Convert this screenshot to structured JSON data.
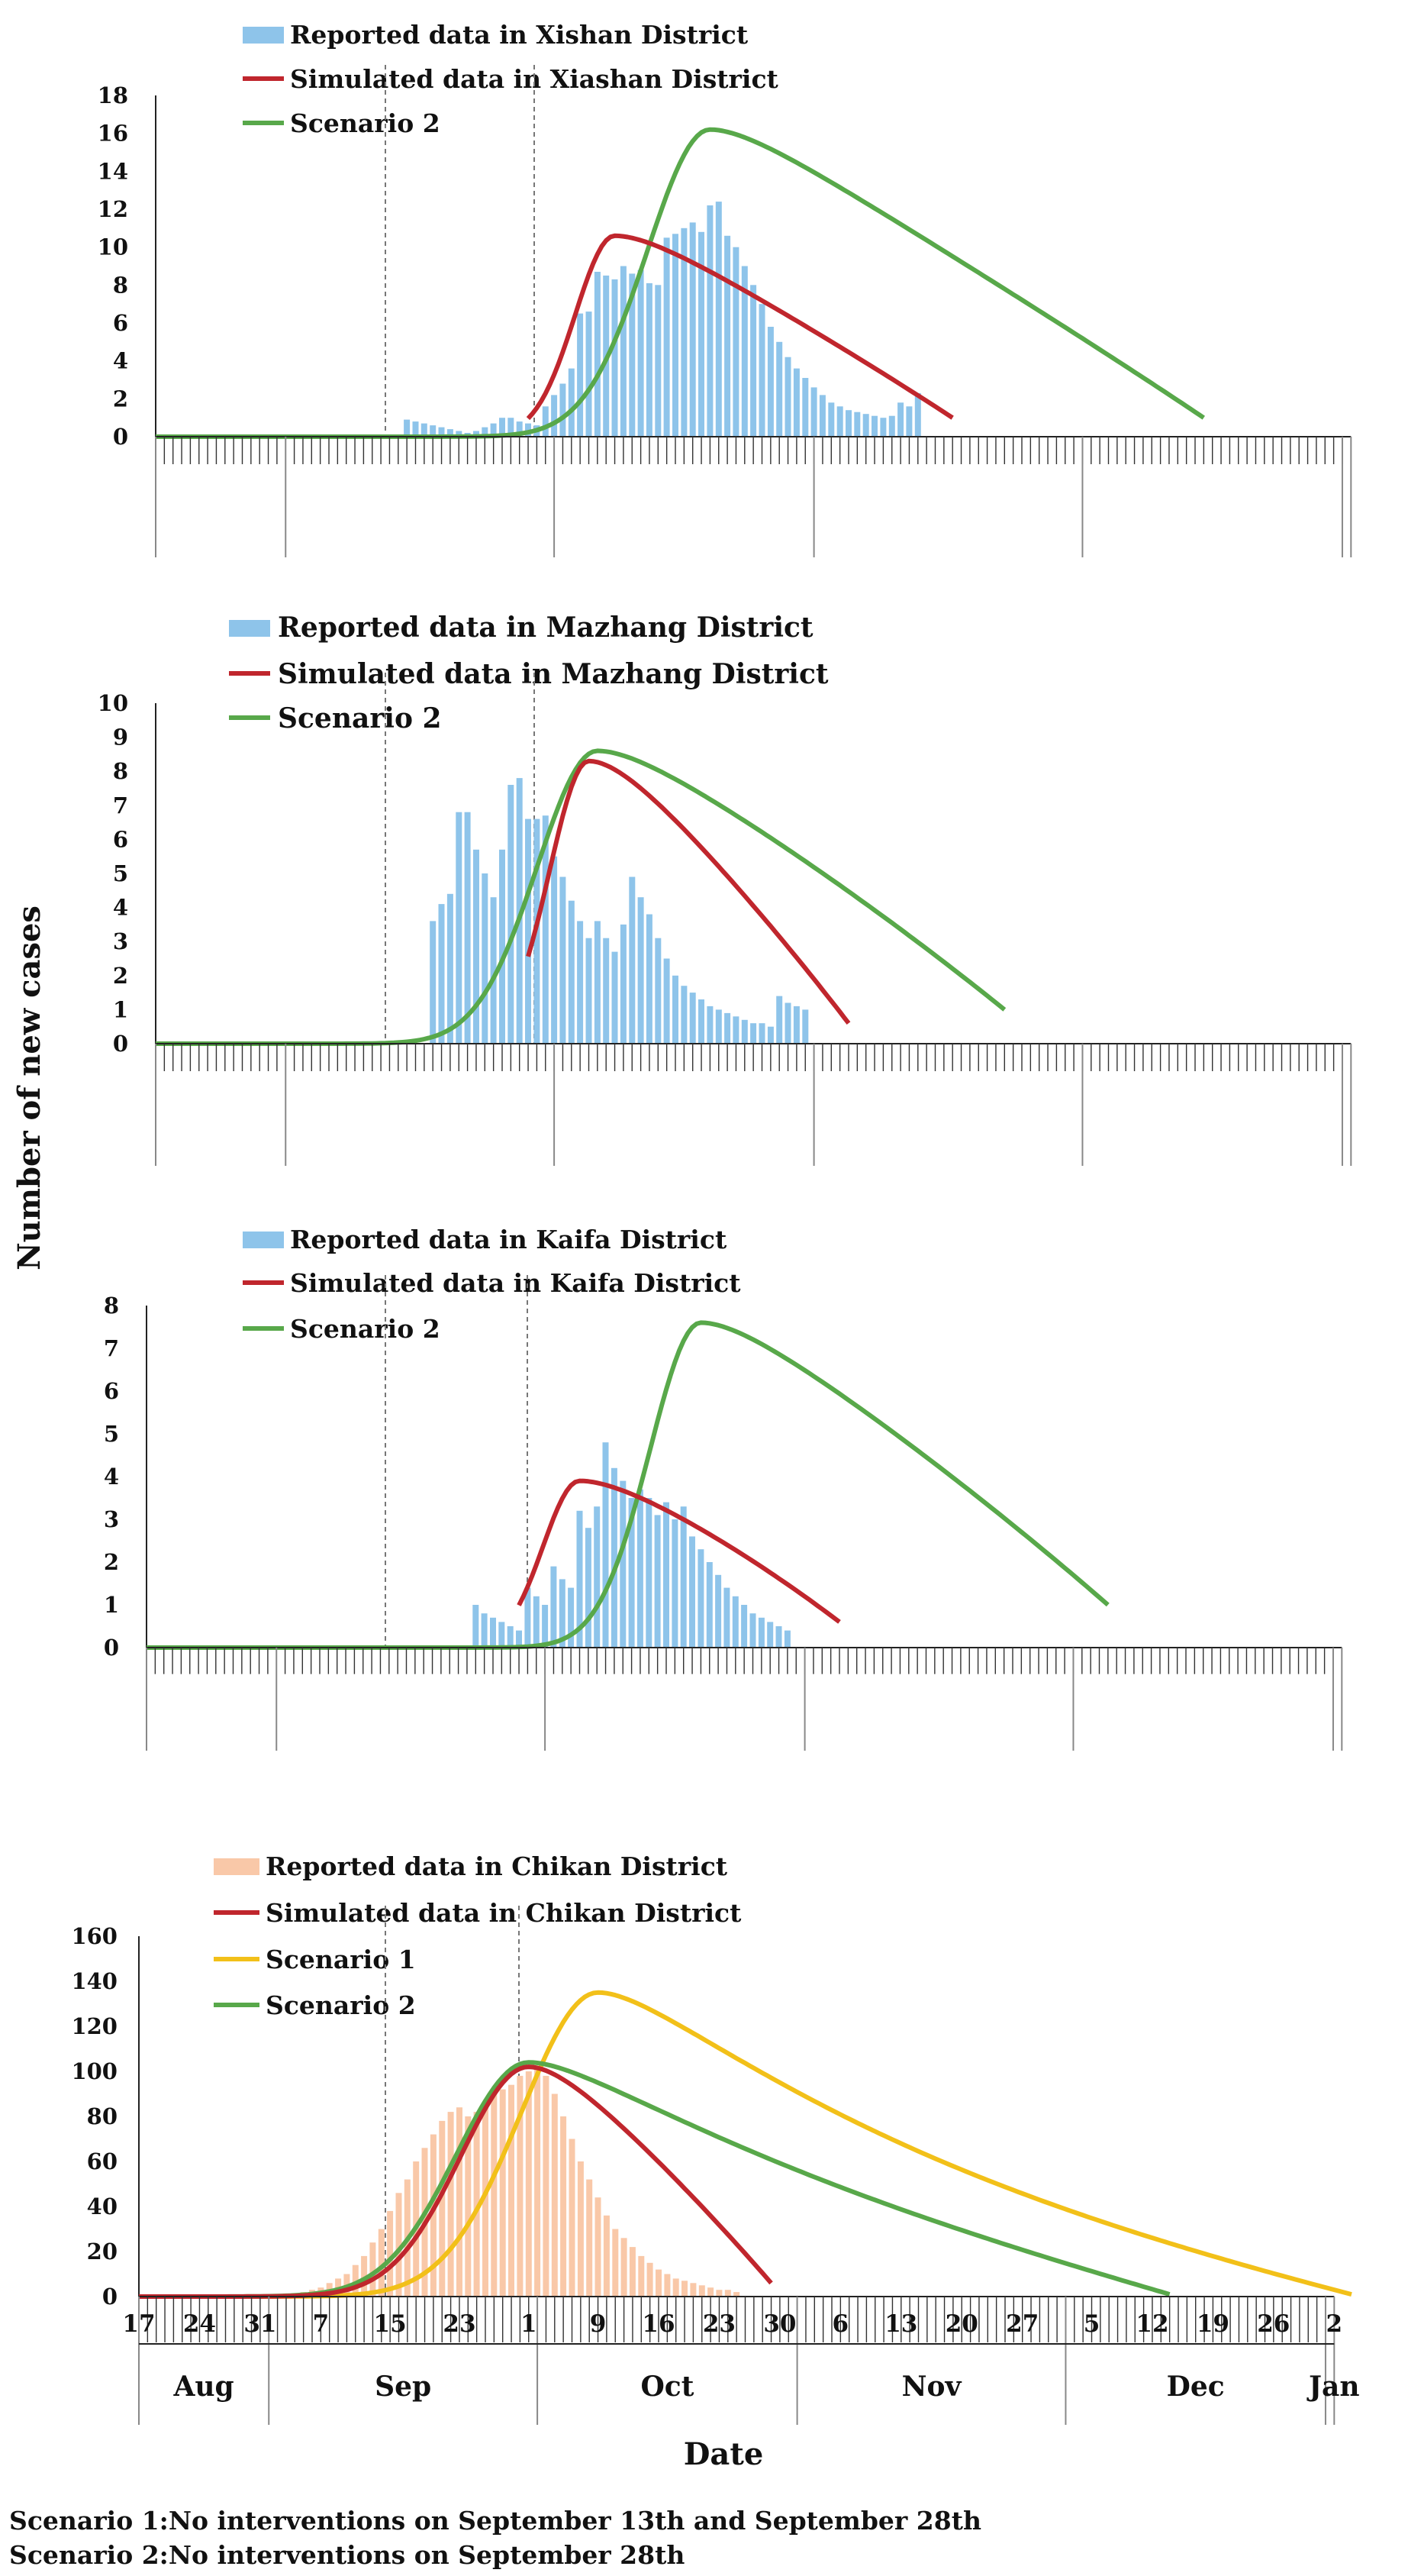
{
  "y_axis_title": "Number of new cases",
  "x_axis_title": "Date",
  "x_tick_labels": [
    "17",
    "24",
    "31",
    "7",
    "15",
    "23",
    "1",
    "9",
    "16",
    "23",
    "30",
    "6",
    "13",
    "20",
    "27",
    "5",
    "12",
    "19",
    "26",
    "2"
  ],
  "month_labels": [
    "Aug",
    "Sep",
    "Oct",
    "Nov",
    "Dec",
    "Jan"
  ],
  "notes": [
    "Scenario 1:No interventions on September 13th and September 28th",
    "Scenario 2:No interventions on September 28th"
  ],
  "colors": {
    "reported_blue": "#8ec4ea",
    "reported_orange": "#f9c8a8",
    "simulated": "#c0262d",
    "scenario1": "#f2c019",
    "scenario2": "#58a84a"
  },
  "chart_data": [
    {
      "type": "bar+line",
      "panel": "Xishan",
      "ylim": [
        0,
        18
      ],
      "yticks": [
        "0",
        "2",
        "4",
        "6",
        "8",
        "10",
        "12",
        "14",
        "16",
        "18"
      ],
      "legend": [
        "Reported data in Xishan District",
        "Simulated data in Xiashan District",
        "Scenario 2"
      ],
      "reported": {
        "start_day": 29,
        "values": [
          0.9,
          0.8,
          0.7,
          0.6,
          0.5,
          0.4,
          0.3,
          0.2,
          0.3,
          0.5,
          0.7,
          1.0,
          1.0,
          0.8,
          0.7,
          0.6,
          1.6,
          2.2,
          2.8,
          3.6,
          6.5,
          6.6,
          8.7,
          8.5,
          8.3,
          9.0,
          8.6,
          8.8,
          8.1,
          8.0,
          10.5,
          10.7,
          11.0,
          11.3,
          10.8,
          12.2,
          12.4,
          10.6,
          10.0,
          9.0,
          8.0,
          7.0,
          5.8,
          5.0,
          4.2,
          3.6,
          3.1,
          2.6,
          2.2,
          1.8,
          1.6,
          1.4,
          1.3,
          1.2,
          1.1,
          1.0,
          1.1,
          1.8,
          1.6,
          2.3
        ]
      },
      "simulated": {
        "start_day": 43,
        "peak_day": 53,
        "peak": 10.6,
        "end_day": 92,
        "end_value": 1.0,
        "rise_k": 0.3,
        "fall_k": 0.07
      },
      "scenario2": {
        "start_day": 0,
        "peak_day": 64,
        "peak": 16.2,
        "end_day": 121,
        "end_value": 1.0,
        "rise_k": 0.12,
        "fall_k": 0.05
      }
    },
    {
      "type": "bar+line",
      "panel": "Mazhang",
      "ylim": [
        0,
        10
      ],
      "yticks": [
        "0",
        "1",
        "2",
        "3",
        "4",
        "5",
        "6",
        "7",
        "8",
        "9",
        "10"
      ],
      "legend": [
        "Reported data in Mazhang District",
        "Simulated data in Mazhang District",
        "Scenario 2"
      ],
      "reported": {
        "start_day": 32,
        "values": [
          3.6,
          4.1,
          4.4,
          6.8,
          6.8,
          5.7,
          5.0,
          4.3,
          5.7,
          7.6,
          7.8,
          6.6,
          6.6,
          6.7,
          5.5,
          4.9,
          4.2,
          3.6,
          3.1,
          3.6,
          3.1,
          2.7,
          3.5,
          4.9,
          4.3,
          3.8,
          3.1,
          2.5,
          2.0,
          1.7,
          1.5,
          1.3,
          1.1,
          1.0,
          0.9,
          0.8,
          0.7,
          0.6,
          0.6,
          0.5,
          1.4,
          1.2,
          1.1,
          1.0
        ]
      },
      "simulated": {
        "start_day": 43,
        "peak_day": 50,
        "peak": 8.3,
        "end_day": 80,
        "end_value": 0.6,
        "rise_k": 0.3,
        "fall_k": 0.09
      },
      "scenario2": {
        "start_day": 0,
        "peak_day": 51,
        "peak": 8.6,
        "end_day": 98,
        "end_value": 1.0,
        "rise_k": 0.13,
        "fall_k": 0.05
      }
    },
    {
      "type": "bar+line",
      "panel": "Kaifa",
      "ylim": [
        0,
        8
      ],
      "yticks": [
        "0",
        "1",
        "2",
        "3",
        "4",
        "5",
        "6",
        "7",
        "8"
      ],
      "legend": [
        "Reported data in Kaifa District",
        "Simulated data in Kaifa District",
        "Scenario 2"
      ],
      "reported": {
        "start_day": 38,
        "values": [
          1.0,
          0.8,
          0.7,
          0.6,
          0.5,
          0.4,
          1.4,
          1.2,
          1.0,
          1.9,
          1.6,
          1.4,
          3.2,
          2.8,
          3.3,
          4.8,
          4.2,
          3.9,
          3.5,
          3.7,
          3.5,
          3.1,
          3.4,
          3.0,
          3.3,
          2.6,
          2.3,
          2.0,
          1.7,
          1.4,
          1.2,
          1.0,
          0.8,
          0.7,
          0.6,
          0.5,
          0.4
        ]
      },
      "simulated": {
        "start_day": 43,
        "peak_day": 50,
        "peak": 3.9,
        "end_day": 80,
        "end_value": 0.6,
        "rise_k": 0.35,
        "fall_k": 0.07
      },
      "scenario2": {
        "start_day": 0,
        "peak_day": 64,
        "peak": 7.6,
        "end_day": 111,
        "end_value": 1.0,
        "rise_k": 0.18,
        "fall_k": 0.05
      }
    },
    {
      "type": "bar+line",
      "panel": "Chikan",
      "ylim": [
        0,
        160
      ],
      "yticks": [
        "0",
        "20",
        "40",
        "60",
        "80",
        "100",
        "120",
        "140",
        "160"
      ],
      "legend": [
        "Reported data in Chikan District",
        "Simulated data in Chikan District",
        "Scenario 1",
        "Scenario 2"
      ],
      "reported": {
        "start_day": 18,
        "values": [
          1,
          2,
          3,
          4,
          6,
          8,
          10,
          14,
          18,
          24,
          30,
          38,
          46,
          52,
          60,
          66,
          72,
          78,
          82,
          84,
          80,
          82,
          86,
          90,
          92,
          94,
          98,
          100,
          102,
          98,
          90,
          80,
          70,
          60,
          52,
          44,
          36,
          30,
          26,
          22,
          18,
          15,
          12,
          10,
          8,
          7,
          6,
          5,
          4,
          3,
          3,
          2
        ]
      },
      "simulated": {
        "start_day": 0,
        "peak_day": 45,
        "peak": 102,
        "end_day": 73,
        "end_value": 6,
        "rise_k": 0.1,
        "fall_k": 0.1
      },
      "scenario1": {
        "start_day": 0,
        "peak_day": 53,
        "peak": 135,
        "end_day": 140,
        "end_value": 1,
        "rise_k": 0.08,
        "fall_k": 0.06
      },
      "scenario2": {
        "start_day": 0,
        "peak_day": 45,
        "peak": 104,
        "end_day": 119,
        "end_value": 1,
        "rise_k": 0.09,
        "fall_k": 0.06
      }
    }
  ]
}
